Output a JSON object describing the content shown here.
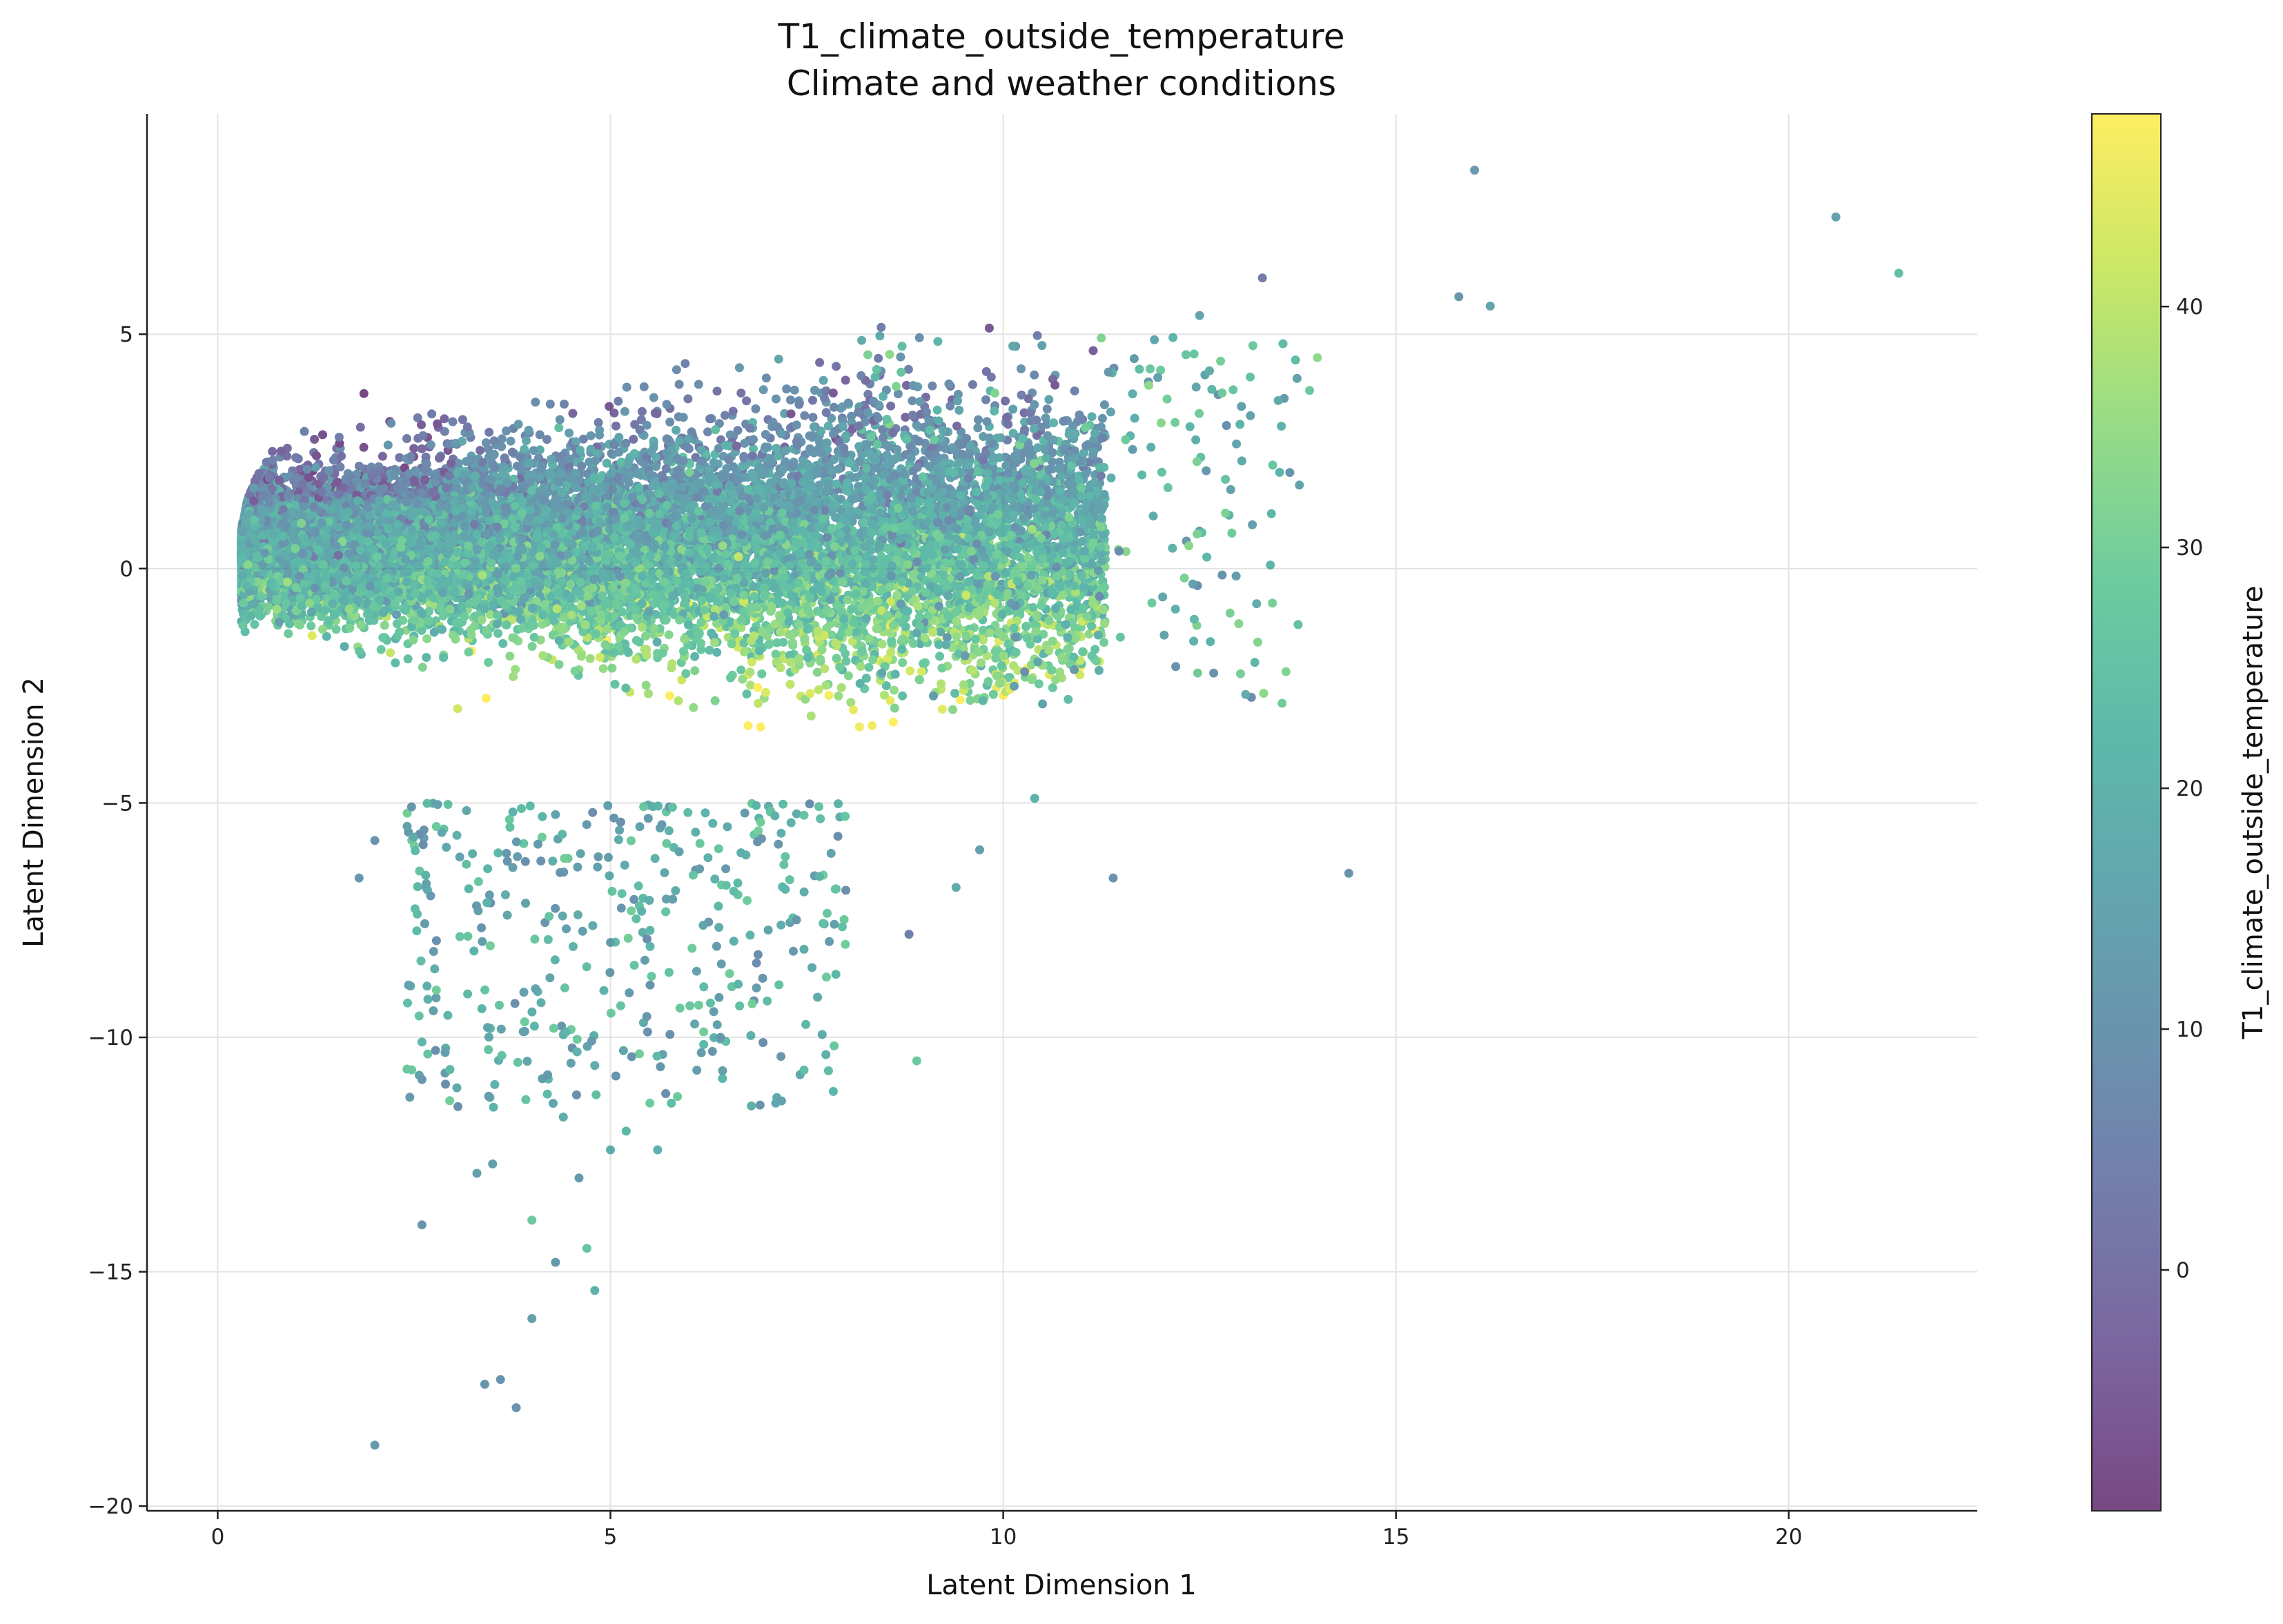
{
  "chart_data": {
    "type": "scatter",
    "title": "T1_climate_outside_temperature",
    "subtitle": "Climate and weather conditions",
    "xlabel": "Latent Dimension 1",
    "ylabel": "Latent Dimension 2",
    "xlim": [
      -0.9,
      22.4
    ],
    "ylim": [
      -20.1,
      9.7
    ],
    "xticks": [
      0,
      5,
      10,
      15,
      20
    ],
    "yticks": [
      -20,
      -15,
      -10,
      -5,
      0,
      5
    ],
    "xtick_labels": [
      "0",
      "5",
      "10",
      "15",
      "20"
    ],
    "ytick_labels": [
      "−20",
      "−15",
      "−10",
      "−5",
      "0",
      "5"
    ],
    "grid": true,
    "marker_alpha": 0.7,
    "colorbar": {
      "label": "T1_climate_outside_temperature",
      "colormap": "viridis",
      "range": [
        -10,
        48
      ],
      "ticks": [
        0,
        10,
        20,
        30,
        40
      ],
      "tick_labels": [
        "0",
        "10",
        "20",
        "30",
        "40"
      ]
    },
    "colormap_stops": [
      "#440154",
      "#482878",
      "#3e4989",
      "#31688e",
      "#26828e",
      "#1f9e89",
      "#35b779",
      "#6ece58",
      "#b5de2b",
      "#fde725"
    ],
    "outliers": [
      {
        "x": 16.0,
        "y": 8.5,
        "c": 12
      },
      {
        "x": 20.6,
        "y": 7.5,
        "c": 14
      },
      {
        "x": 21.4,
        "y": 6.3,
        "c": 24
      },
      {
        "x": 13.3,
        "y": 6.2,
        "c": 4
      },
      {
        "x": 15.8,
        "y": 5.8,
        "c": 12
      },
      {
        "x": 16.2,
        "y": 5.6,
        "c": 16
      },
      {
        "x": 14.4,
        "y": -6.5,
        "c": 10
      },
      {
        "x": 11.4,
        "y": -6.6,
        "c": 10
      },
      {
        "x": 10.4,
        "y": -4.9,
        "c": 20
      },
      {
        "x": 13.6,
        "y": -2.2,
        "c": 32
      },
      {
        "x": 14.0,
        "y": 4.5,
        "c": 34
      },
      {
        "x": 13.9,
        "y": 3.8,
        "c": 28
      },
      {
        "x": 12.5,
        "y": 5.4,
        "c": 16
      },
      {
        "x": 8.9,
        "y": -10.5,
        "c": 28
      },
      {
        "x": 2.0,
        "y": -18.7,
        "c": 12
      },
      {
        "x": 3.8,
        "y": -17.9,
        "c": 10
      },
      {
        "x": 3.6,
        "y": -17.3,
        "c": 10
      },
      {
        "x": 3.4,
        "y": -17.4,
        "c": 10
      },
      {
        "x": 4.0,
        "y": -16.0,
        "c": 14
      },
      {
        "x": 4.8,
        "y": -15.4,
        "c": 20
      },
      {
        "x": 4.7,
        "y": -14.5,
        "c": 26
      },
      {
        "x": 4.3,
        "y": -14.8,
        "c": 12
      },
      {
        "x": 2.6,
        "y": -14.0,
        "c": 10
      },
      {
        "x": 4.0,
        "y": -13.9,
        "c": 28
      },
      {
        "x": 3.3,
        "y": -12.9,
        "c": 14
      },
      {
        "x": 3.5,
        "y": -12.7,
        "c": 14
      },
      {
        "x": 4.6,
        "y": -13.0,
        "c": 12
      },
      {
        "x": 5.0,
        "y": -12.4,
        "c": 20
      },
      {
        "x": 5.6,
        "y": -12.4,
        "c": 20
      },
      {
        "x": 5.2,
        "y": -12.0,
        "c": 22
      },
      {
        "x": 2.0,
        "y": -5.8,
        "c": 10
      },
      {
        "x": 1.8,
        "y": -6.6,
        "c": 12
      },
      {
        "x": 9.7,
        "y": -6.0,
        "c": 14
      },
      {
        "x": 9.4,
        "y": -6.8,
        "c": 18
      },
      {
        "x": 8.8,
        "y": -7.8,
        "c": 4
      },
      {
        "x": 6.4,
        "y": -10.0,
        "c": 12
      },
      {
        "x": 6.1,
        "y": -10.7,
        "c": 14
      },
      {
        "x": 4.2,
        "y": -10.8,
        "c": 12
      },
      {
        "x": 2.9,
        "y": -11.0,
        "c": 8
      },
      {
        "x": 2.6,
        "y": -10.9,
        "c": 12
      },
      {
        "x": 2.6,
        "y": -10.1,
        "c": 22
      },
      {
        "x": 4.4,
        "y": -11.7,
        "c": 18
      },
      {
        "x": 4.8,
        "y": -10.6,
        "c": 18
      }
    ]
  }
}
